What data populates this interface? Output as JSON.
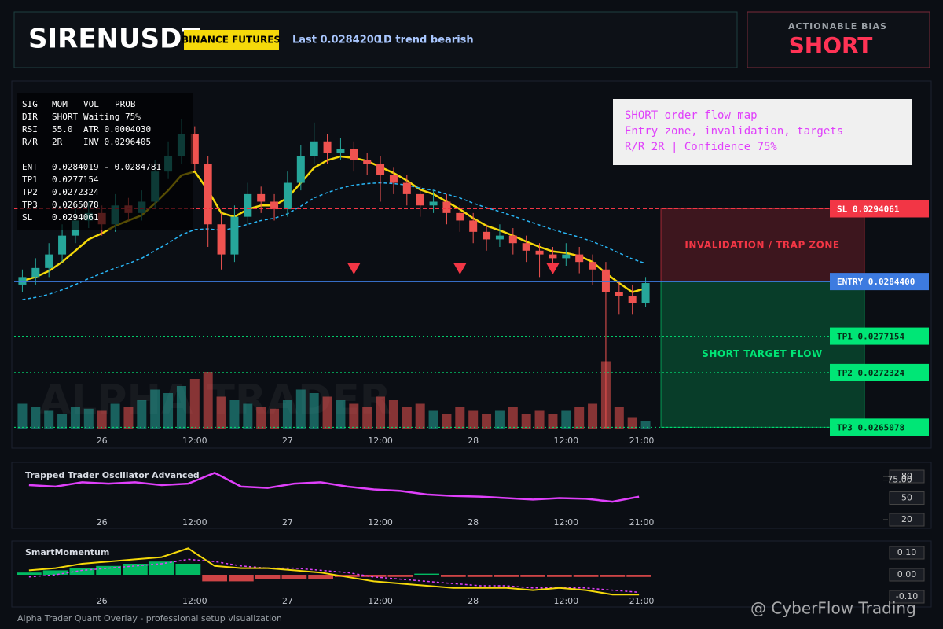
{
  "header": {
    "symbol": "SIRENUSDT",
    "badge": "BINANCE FUTURES",
    "last": "Last 0.0284200",
    "trend": "1D trend bearish"
  },
  "bias": {
    "label": "ACTIONABLE BIAS",
    "value": "SHORT"
  },
  "info_box": [
    [
      "SIG",
      "MOM",
      "VOL",
      "PROB"
    ],
    [
      "DIR",
      "SHORT",
      "Waiting 75%"
    ],
    [
      "RSI",
      "55.0",
      "ATR 0.0004030"
    ],
    [
      "R/R",
      "2R",
      "INV 0.0296405"
    ],
    [
      "ENT",
      "0.0284019 - 0.0284781"
    ],
    [
      "TP1",
      "0.0277154"
    ],
    [
      "TP2",
      "0.0272324"
    ],
    [
      "TP3",
      "0.0265078"
    ],
    [
      "SL",
      "0.0294061"
    ]
  ],
  "annotation": [
    "SHORT order flow map",
    "Entry zone, invalidation, targets",
    "R/R 2R | Confidence 75%"
  ],
  "watermark": "ALPHA TRADER",
  "footer": "Alpha Trader Quant Overlay - professional setup visualization",
  "site_watermark": "@ CyberFlow Trading",
  "price_chart": {
    "type": "candlestick",
    "ylim": [
      0.02623,
      0.03108
    ],
    "xticks": [
      {
        "value": 6,
        "label": "26"
      },
      {
        "value": 13,
        "label": "12:00"
      },
      {
        "value": 20,
        "label": "27"
      },
      {
        "value": 27,
        "label": "12:00"
      },
      {
        "value": 34,
        "label": "28"
      },
      {
        "value": 41,
        "label": "12:00"
      },
      {
        "value": 46.7,
        "label": "21:00"
      }
    ],
    "candles": {
      "open": [
        0.0284,
        0.0285,
        0.02862,
        0.0288,
        0.02905,
        0.02925,
        0.02935,
        0.0292,
        0.02945,
        0.02935,
        0.0295,
        0.0299,
        0.0301,
        0.0304,
        0.03,
        0.0292,
        0.0288,
        0.0293,
        0.0296,
        0.0295,
        0.0294,
        0.02975,
        0.0301,
        0.0303,
        0.03015,
        0.0302,
        0.03005,
        0.03,
        0.02985,
        0.02975,
        0.0296,
        0.02945,
        0.0295,
        0.02935,
        0.02925,
        0.0291,
        0.029,
        0.02905,
        0.02895,
        0.02885,
        0.0288,
        0.02875,
        0.0288,
        0.0287,
        0.0286,
        0.0283,
        0.02825,
        0.02815
      ],
      "high": [
        0.0286,
        0.02875,
        0.02895,
        0.0292,
        0.0294,
        0.0295,
        0.02945,
        0.0296,
        0.02955,
        0.02965,
        0.03005,
        0.0303,
        0.0306,
        0.0305,
        0.0301,
        0.02935,
        0.02945,
        0.02975,
        0.0297,
        0.0296,
        0.0299,
        0.03025,
        0.03055,
        0.0304,
        0.03035,
        0.0303,
        0.03015,
        0.0301,
        0.02995,
        0.02985,
        0.0297,
        0.02965,
        0.0296,
        0.02945,
        0.02935,
        0.0292,
        0.0292,
        0.02915,
        0.02905,
        0.02895,
        0.0289,
        0.02895,
        0.0289,
        0.0288,
        0.0287,
        0.02845,
        0.0284,
        0.0285
      ],
      "low": [
        0.0283,
        0.0284,
        0.0285,
        0.0287,
        0.02895,
        0.02915,
        0.02905,
        0.0291,
        0.02925,
        0.02925,
        0.0294,
        0.0298,
        0.03,
        0.0299,
        0.0289,
        0.0286,
        0.0287,
        0.0292,
        0.02935,
        0.02925,
        0.0293,
        0.02965,
        0.03,
        0.03,
        0.03005,
        0.0299,
        0.02985,
        0.0295,
        0.0296,
        0.02945,
        0.0293,
        0.02935,
        0.0292,
        0.0291,
        0.02895,
        0.02885,
        0.0289,
        0.0288,
        0.0287,
        0.0285,
        0.0286,
        0.02865,
        0.02855,
        0.0284,
        0.0265,
        0.028,
        0.028,
        0.0281
      ],
      "close": [
        0.0285,
        0.02862,
        0.0288,
        0.02905,
        0.02925,
        0.02935,
        0.0292,
        0.02945,
        0.02935,
        0.0295,
        0.0299,
        0.0301,
        0.0304,
        0.03,
        0.0292,
        0.0288,
        0.0293,
        0.0296,
        0.0295,
        0.0294,
        0.02975,
        0.0301,
        0.0303,
        0.03015,
        0.0302,
        0.03005,
        0.03,
        0.02985,
        0.02975,
        0.0296,
        0.02945,
        0.0295,
        0.02935,
        0.02925,
        0.0291,
        0.029,
        0.02905,
        0.02895,
        0.02885,
        0.0288,
        0.02875,
        0.0288,
        0.0287,
        0.0286,
        0.0283,
        0.02825,
        0.02815,
        0.02842
      ]
    },
    "up_color": "#26a69a",
    "down_color": "#ef5350",
    "volume_lim": [
      0,
      100
    ],
    "volume": [
      35,
      30,
      25,
      20,
      30,
      28,
      25,
      35,
      30,
      40,
      55,
      50,
      60,
      70,
      80,
      45,
      40,
      35,
      30,
      28,
      40,
      55,
      50,
      45,
      40,
      35,
      30,
      45,
      40,
      30,
      35,
      25,
      20,
      30,
      25,
      20,
      25,
      30,
      20,
      25,
      20,
      25,
      30,
      35,
      95,
      30,
      15,
      10
    ],
    "lines": [
      {
        "color": "#f5d90a",
        "values": [
          0.02845,
          0.0285,
          0.02858,
          0.0287,
          0.02885,
          0.029,
          0.02908,
          0.02918,
          0.02925,
          0.02932,
          0.02948,
          0.02965,
          0.02985,
          0.0299,
          0.02965,
          0.02935,
          0.0293,
          0.0294,
          0.02945,
          0.02945,
          0.02955,
          0.02975,
          0.02995,
          0.03005,
          0.0301,
          0.03008,
          0.03004,
          0.02996,
          0.02988,
          0.02978,
          0.02966,
          0.0296,
          0.0295,
          0.0294,
          0.02928,
          0.02918,
          0.02912,
          0.02905,
          0.02897,
          0.0289,
          0.02884,
          0.02882,
          0.02878,
          0.0287,
          0.02855,
          0.02842,
          0.0283,
          0.02835
        ]
      },
      {
        "color": "#29b6f6",
        "dashed": true,
        "values": [
          0.0282,
          0.02823,
          0.02827,
          0.02833,
          0.0284,
          0.02848,
          0.02855,
          0.02862,
          0.02868,
          0.02875,
          0.02885,
          0.02895,
          0.02906,
          0.02913,
          0.02914,
          0.02912,
          0.02915,
          0.0292,
          0.02925,
          0.02928,
          0.02934,
          0.02944,
          0.02955,
          0.02962,
          0.02968,
          0.02972,
          0.02974,
          0.02975,
          0.02974,
          0.02972,
          0.02968,
          0.02965,
          0.0296,
          0.02955,
          0.02948,
          0.02942,
          0.02937,
          0.02931,
          0.02925,
          0.02919,
          0.02913,
          0.02908,
          0.02903,
          0.02897,
          0.0289,
          0.02882,
          0.02874,
          0.02868
        ]
      }
    ],
    "signals": [
      25,
      33,
      40
    ],
    "levels": [
      {
        "label": "SL 0.0294061",
        "value": 0.0294061,
        "color": "#f23645",
        "dashed": true
      },
      {
        "label": "ENTRY 0.0284400",
        "value": 0.02844,
        "color": "#3d7be0",
        "dashed": false
      },
      {
        "label": "TP1 0.0277154",
        "value": 0.0277154,
        "color": "#00e676",
        "dashed": true
      },
      {
        "label": "TP2 0.0272324",
        "value": 0.0272324,
        "color": "#00e676",
        "dashed": true
      },
      {
        "label": "TP3 0.0265078",
        "value": 0.0265078,
        "color": "#00e676",
        "dashed": true
      }
    ],
    "zones": [
      {
        "label": "INVALIDATION / TRAP ZONE",
        "from": 0.0294061,
        "to": 0.02844,
        "color": "#f23645"
      },
      {
        "label": "SHORT TARGET FLOW",
        "from": 0.02844,
        "to": 0.0265078,
        "color": "#00e676"
      }
    ]
  },
  "oscillator": {
    "type": "line",
    "title": "Trapped Trader Oscillator Advanced",
    "ylim": [
      20,
      80
    ],
    "yticks": [
      20,
      50,
      80,
      {
        "value": 75,
        "label": "75.00"
      }
    ],
    "level": 50,
    "color": "#e040fb",
    "values": [
      68,
      66,
      72,
      70,
      72,
      68,
      70,
      85,
      66,
      64,
      70,
      72,
      66,
      62,
      60,
      55,
      53,
      52,
      50,
      48,
      50,
      49,
      45,
      52
    ]
  },
  "momentum": {
    "type": "line",
    "title": "SmartMomentum",
    "ylim": [
      -0.1,
      0.1
    ],
    "yticks": [
      {
        "value": 0.1,
        "label": "0.10"
      },
      {
        "value": 0,
        "label": "0.00"
      },
      {
        "value": -0.1,
        "label": "-0.10"
      }
    ],
    "line": {
      "color": "#f5d90a",
      "values": [
        0.02,
        0.03,
        0.05,
        0.06,
        0.07,
        0.08,
        0.12,
        0.04,
        0.03,
        0.03,
        0.02,
        0.01,
        -0.01,
        -0.03,
        -0.04,
        -0.05,
        -0.06,
        -0.06,
        -0.06,
        -0.07,
        -0.06,
        -0.07,
        -0.09,
        -0.09
      ]
    },
    "signal": {
      "color": "#e040fb",
      "values": [
        -0.01,
        0,
        0.02,
        0.03,
        0.04,
        0.05,
        0.07,
        0.06,
        0.04,
        0.03,
        0.03,
        0.02,
        0.01,
        -0.01,
        -0.02,
        -0.03,
        -0.04,
        -0.05,
        -0.05,
        -0.06,
        -0.06,
        -0.06,
        -0.07,
        -0.08
      ]
    },
    "histogram": {
      "up_color": "#00e676",
      "down_color": "#ff5252",
      "values": [
        0.01,
        0.02,
        0.03,
        0.04,
        0.05,
        0.06,
        0.05,
        -0.03,
        -0.03,
        -0.02,
        -0.02,
        -0.02,
        -0.01,
        -0.01,
        -0.01,
        0.005,
        -0.01,
        -0.01,
        -0.01,
        -0.01,
        -0.01,
        -0.01,
        -0.01,
        -0.01
      ]
    }
  }
}
